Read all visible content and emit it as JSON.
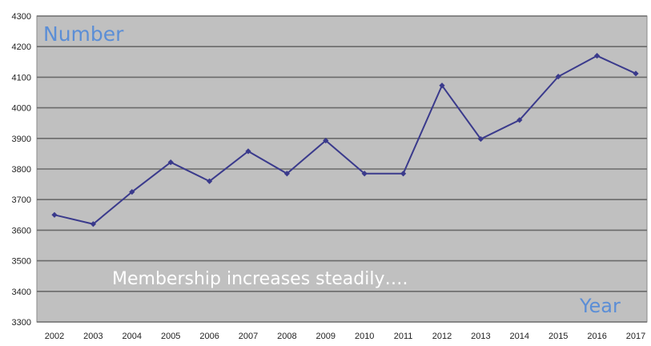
{
  "chart_data": {
    "type": "line",
    "annotations": {
      "y_label": "Number",
      "x_label": "Year",
      "caption": "Membership increases steadily…."
    },
    "x": [
      "2002",
      "2003",
      "2004",
      "2005",
      "2006",
      "2007",
      "2008",
      "2009",
      "2010",
      "2011",
      "2012",
      "2013",
      "2014",
      "2015",
      "2016",
      "2017"
    ],
    "series": [
      {
        "values": [
          3650,
          3620,
          3725,
          3822,
          3760,
          3858,
          3785,
          3893,
          3785,
          3785,
          4073,
          3898,
          3960,
          4102,
          4170,
          4112
        ]
      }
    ],
    "ylim": [
      3300,
      4300
    ],
    "yticks": [
      3300,
      3400,
      3500,
      3600,
      3700,
      3800,
      3900,
      4000,
      4100,
      4200,
      4300
    ],
    "grid": true,
    "colors": {
      "plot_bg": "#c0c0c0",
      "line": "#3a3a8c",
      "gridline": "#6a6a6a",
      "annotation": "#5b8ed6",
      "caption": "#ffffff"
    }
  }
}
